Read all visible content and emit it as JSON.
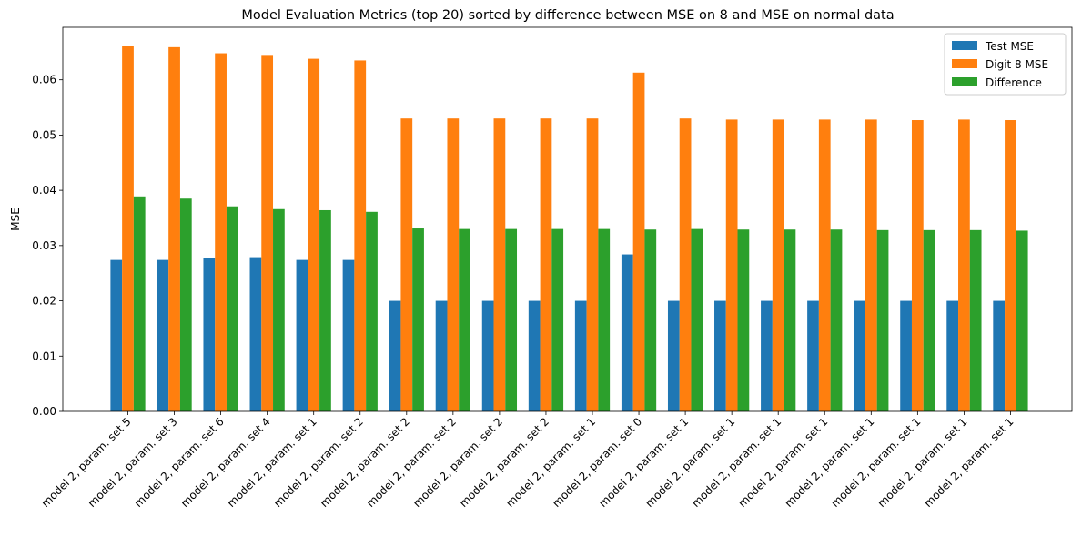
{
  "chart_data": {
    "type": "bar",
    "title": "Model Evaluation Metrics (top 20) sorted by difference between MSE on 8 and MSE on normal data",
    "xlabel": "",
    "ylabel": "MSE",
    "ylim": [
      0,
      0.0695
    ],
    "yticks": [
      0.0,
      0.01,
      0.02,
      0.03,
      0.04,
      0.05,
      0.06
    ],
    "ytick_labels": [
      "0.00",
      "0.01",
      "0.02",
      "0.03",
      "0.04",
      "0.05",
      "0.06"
    ],
    "grid": false,
    "legend_position": "top-right",
    "categories": [
      "model 2, param. set 5",
      "model 2, param. set 3",
      "model 2, param. set 6",
      "model 2, param. set 4",
      "model 2, param. set 1",
      "model 2, param. set 2",
      "model 2, param. set 2",
      "model 2, param. set 2",
      "model 2, param. set 2",
      "model 2, param. set 2",
      "model 2, param. set 1",
      "model 2, param. set 0",
      "model 2, param. set 1",
      "model 2, param. set 1",
      "model 2, param. set 1",
      "model 2, param. set 1",
      "model 2, param. set 1",
      "model 2, param. set 1",
      "model 2, param. set 1",
      "model 2, param. set 1"
    ],
    "series": [
      {
        "name": "Test MSE",
        "color": "#1f77b4",
        "values": [
          0.0274,
          0.0274,
          0.0277,
          0.0279,
          0.0274,
          0.0274,
          0.02,
          0.02,
          0.02,
          0.02,
          0.02,
          0.0284,
          0.02,
          0.02,
          0.02,
          0.02,
          0.02,
          0.02,
          0.02,
          0.02
        ]
      },
      {
        "name": "Digit 8 MSE",
        "color": "#ff7f0e",
        "values": [
          0.0662,
          0.0659,
          0.0648,
          0.0645,
          0.0638,
          0.0635,
          0.053,
          0.053,
          0.053,
          0.053,
          0.053,
          0.0613,
          0.053,
          0.0528,
          0.0528,
          0.0528,
          0.0528,
          0.0527,
          0.0528,
          0.0527
        ]
      },
      {
        "name": "Difference",
        "color": "#2ca02c",
        "values": [
          0.0389,
          0.0385,
          0.0371,
          0.0366,
          0.0364,
          0.0361,
          0.0331,
          0.033,
          0.033,
          0.033,
          0.033,
          0.0329,
          0.033,
          0.0329,
          0.0329,
          0.0329,
          0.0328,
          0.0328,
          0.0328,
          0.0327
        ]
      }
    ]
  }
}
